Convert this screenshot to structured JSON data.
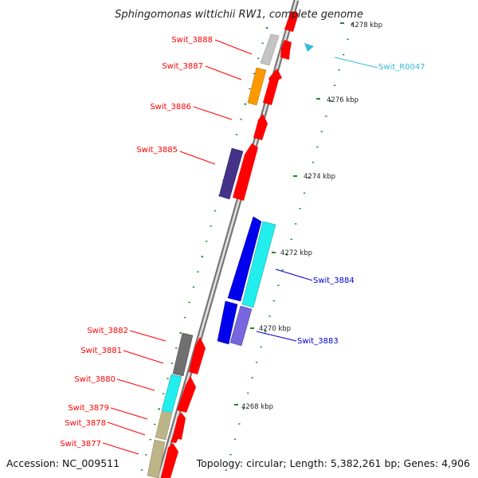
{
  "title": "Sphingomonas wittichii RW1, complete genome",
  "accession": "Accession: NC_009511",
  "topology": "Topology: circular; Length: 5,382,261 bp; Genes: 4,906",
  "colors": {
    "forward_gene": "#ff0000",
    "reverse_label": "#0000cc",
    "rna_label": "#33bbdd",
    "backbone": "#888888",
    "tick": "#228822"
  },
  "scale_ticks": [
    {
      "label": "4268 kbp"
    },
    {
      "label": "4270 kbp"
    },
    {
      "label": "4272 kbp"
    },
    {
      "label": "4274 kbp"
    },
    {
      "label": "4276 kbp"
    },
    {
      "label": "4278 kbp"
    }
  ],
  "gene_labels": {
    "left": [
      {
        "label": "Swit_3888"
      },
      {
        "label": "Swit_3887"
      },
      {
        "label": "Swit_3886"
      },
      {
        "label": "Swit_3885"
      },
      {
        "label": "Swit_3882"
      },
      {
        "label": "Swit_3881"
      },
      {
        "label": "Swit_3880"
      },
      {
        "label": "Swit_3879"
      },
      {
        "label": "Swit_3878"
      },
      {
        "label": "Swit_3877"
      }
    ],
    "right": [
      {
        "label": "Swit_R0047"
      },
      {
        "label": "Swit_3884"
      },
      {
        "label": "Swit_3883"
      }
    ]
  }
}
